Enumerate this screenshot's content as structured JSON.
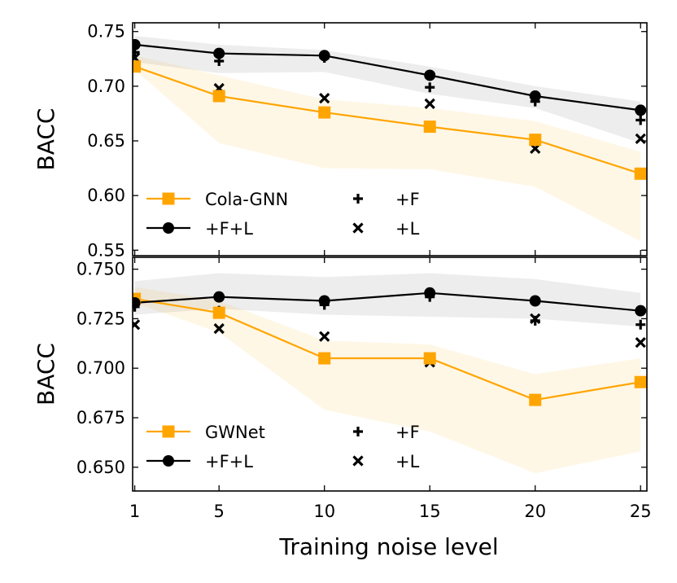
{
  "xlabel": "Training noise level",
  "chart_data": [
    {
      "type": "line",
      "ylabel": "BACC",
      "x": [
        1,
        5,
        10,
        15,
        20,
        25
      ],
      "xticks": [
        1,
        5,
        10,
        15,
        20,
        25
      ],
      "xlim": [
        0.9,
        25.3
      ],
      "ylim": [
        0.545,
        0.758
      ],
      "yticks": [
        0.55,
        0.6,
        0.65,
        0.7,
        0.75
      ],
      "ytick_labels": [
        "0.55",
        "0.60",
        "0.65",
        "0.70",
        "0.75"
      ],
      "series": [
        {
          "name": "Cola-GNN",
          "values": [
            0.718,
            0.691,
            0.676,
            0.663,
            0.651,
            0.62
          ],
          "band_low": [
            0.715,
            0.648,
            0.625,
            0.624,
            0.608,
            0.558
          ],
          "band_high": [
            0.728,
            0.71,
            0.688,
            0.68,
            0.668,
            0.64
          ],
          "color": "#FFA500",
          "marker": "square",
          "line": true
        },
        {
          "name": "+F+L",
          "values": [
            0.738,
            0.73,
            0.728,
            0.71,
            0.691,
            0.678
          ],
          "band_low": [
            0.722,
            0.712,
            0.713,
            0.693,
            0.68,
            0.648
          ],
          "band_high": [
            0.746,
            0.738,
            0.733,
            0.718,
            0.7,
            0.686
          ],
          "color": "#000000",
          "marker": "circle",
          "line": true
        },
        {
          "name": "+F",
          "values": [
            0.731,
            0.723,
            0.726,
            0.699,
            0.686,
            0.669
          ],
          "color": "#000000",
          "marker": "plus",
          "line": false
        },
        {
          "name": "+L",
          "values": [
            0.726,
            0.698,
            0.689,
            0.684,
            0.643,
            0.652
          ],
          "color": "#000000",
          "marker": "x",
          "line": false
        }
      ],
      "legend": {
        "placement": "lower-left",
        "columns": 2
      }
    },
    {
      "type": "line",
      "ylabel": "BACC",
      "x": [
        1,
        5,
        10,
        15,
        20,
        25
      ],
      "xticks": [
        1,
        5,
        10,
        15,
        20,
        25
      ],
      "xlim": [
        0.9,
        25.3
      ],
      "ylim": [
        0.638,
        0.756
      ],
      "yticks": [
        0.65,
        0.675,
        0.7,
        0.725,
        0.75
      ],
      "ytick_labels": [
        "0.650",
        "0.675",
        "0.700",
        "0.725",
        "0.750"
      ],
      "series": [
        {
          "name": "GWNet",
          "values": [
            0.735,
            0.728,
            0.705,
            0.705,
            0.684,
            0.693
          ],
          "band_low": [
            0.733,
            0.718,
            0.679,
            0.668,
            0.647,
            0.658
          ],
          "band_high": [
            0.741,
            0.734,
            0.714,
            0.712,
            0.697,
            0.705
          ],
          "color": "#FFA500",
          "marker": "square",
          "line": true
        },
        {
          "name": "+F+L",
          "values": [
            0.733,
            0.736,
            0.734,
            0.738,
            0.734,
            0.729
          ],
          "band_low": [
            0.727,
            0.73,
            0.727,
            0.726,
            0.725,
            0.721
          ],
          "band_high": [
            0.744,
            0.748,
            0.746,
            0.748,
            0.745,
            0.738
          ],
          "color": "#000000",
          "marker": "circle",
          "line": true
        },
        {
          "name": "+F",
          "values": [
            0.731,
            0.729,
            0.732,
            0.736,
            0.724,
            0.722
          ],
          "color": "#000000",
          "marker": "plus",
          "line": false
        },
        {
          "name": "+L",
          "values": [
            0.722,
            0.72,
            0.716,
            0.703,
            0.725,
            0.713
          ],
          "color": "#000000",
          "marker": "x",
          "line": false
        }
      ],
      "legend": {
        "placement": "lower-left",
        "columns": 2
      }
    }
  ]
}
